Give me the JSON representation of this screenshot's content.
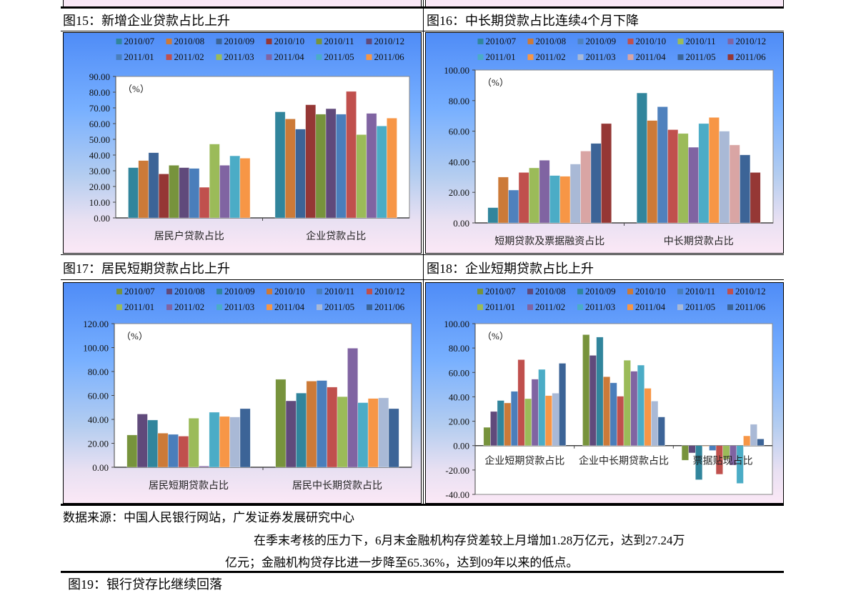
{
  "figures": [
    {
      "title": "图15：新增企业贷款占比上升"
    },
    {
      "title": "图16：中长期贷款占比连续4个月下降"
    },
    {
      "title": "图17：居民短期贷款占比上升"
    },
    {
      "title": "图18：企业短期贷款占比上升"
    }
  ],
  "source": "数据来源：中国人民银行网站，广发证券发展研究中心",
  "paragraph": {
    "line1": "在季末考核的压力下，6月末金融机构存贷差较上月增加1.28万亿元，达到27.24万",
    "line2": "亿元；金融机构贷存比进一步降至65.36%，达到09年以来的低点。"
  },
  "next_figure_title": "图19：银行贷存比继续回落",
  "chart_data": [
    {
      "type": "bar",
      "title": "图15：新增企业贷款占比上升",
      "unit_label": "（%）",
      "categories": [
        "居民户贷款占比",
        "企业贷款占比"
      ],
      "ylim": [
        0,
        90
      ],
      "ytick_step": 10,
      "yticks": [
        "0.00",
        "10.00",
        "20.00",
        "30.00",
        "40.00",
        "50.00",
        "60.00",
        "70.00",
        "80.00",
        "90.00"
      ],
      "legend_placement": "top",
      "series": [
        {
          "name": "2010/07",
          "color": "#31859c",
          "values": [
            32,
            67.5
          ]
        },
        {
          "name": "2010/08",
          "color": "#cc7a38",
          "values": [
            36.5,
            63
          ]
        },
        {
          "name": "2010/09",
          "color": "#3c6497",
          "values": [
            41.5,
            56.5
          ]
        },
        {
          "name": "2010/10",
          "color": "#953735",
          "values": [
            28,
            72
          ]
        },
        {
          "name": "2010/11",
          "color": "#77933c",
          "values": [
            33.5,
            66
          ]
        },
        {
          "name": "2010/12",
          "color": "#604a7b",
          "values": [
            32,
            69.5
          ]
        },
        {
          "name": "2011/01",
          "color": "#4a7ebb",
          "values": [
            31.5,
            66
          ]
        },
        {
          "name": "2011/02",
          "color": "#c0504d",
          "values": [
            19.5,
            80.5
          ]
        },
        {
          "name": "2011/03",
          "color": "#9bbb59",
          "values": [
            47,
            53
          ]
        },
        {
          "name": "2011/04",
          "color": "#8064a2",
          "values": [
            33.5,
            66.5
          ]
        },
        {
          "name": "2011/05",
          "color": "#4bacc6",
          "values": [
            39.5,
            58.5
          ]
        },
        {
          "name": "2011/06",
          "color": "#f79646",
          "values": [
            38,
            63.5
          ]
        }
      ]
    },
    {
      "type": "bar",
      "title": "图16：中长期贷款占比连续4个月下降",
      "unit_label": "（%）",
      "categories": [
        "短期贷款及票据融资占比",
        "中长期贷款占比"
      ],
      "ylim": [
        0,
        100
      ],
      "ytick_step": 20,
      "yticks": [
        "0.00",
        "20.00",
        "40.00",
        "60.00",
        "80.00",
        "100.00"
      ],
      "legend_placement": "top",
      "series": [
        {
          "name": "2010/07",
          "color": "#31859c",
          "values": [
            10,
            85
          ]
        },
        {
          "name": "2010/08",
          "color": "#cc7a38",
          "values": [
            30,
            67
          ]
        },
        {
          "name": "2010/09",
          "color": "#4f81bd",
          "values": [
            21.5,
            76
          ]
        },
        {
          "name": "2010/10",
          "color": "#c0504d",
          "values": [
            33,
            61
          ]
        },
        {
          "name": "2010/11",
          "color": "#9bbb59",
          "values": [
            36,
            58.5
          ]
        },
        {
          "name": "2010/12",
          "color": "#8064a2",
          "values": [
            41,
            49.5
          ]
        },
        {
          "name": "2011/01",
          "color": "#4bacc6",
          "values": [
            31,
            65
          ]
        },
        {
          "name": "2011/02",
          "color": "#f79646",
          "values": [
            30.5,
            69
          ]
        },
        {
          "name": "2011/03",
          "color": "#a9b9d6",
          "values": [
            38.5,
            60
          ]
        },
        {
          "name": "2011/04",
          "color": "#d9a5a4",
          "values": [
            47,
            51
          ]
        },
        {
          "name": "2011/05",
          "color": "#3c6497",
          "values": [
            52,
            44.5
          ]
        },
        {
          "name": "2011/06",
          "color": "#953735",
          "values": [
            65,
            33
          ]
        }
      ]
    },
    {
      "type": "bar",
      "title": "图17：居民短期贷款占比上升",
      "unit_label": "（%）",
      "categories": [
        "居民短期贷款占比",
        "居民中长期贷款占比"
      ],
      "ylim": [
        0,
        120
      ],
      "ytick_step": 20,
      "yticks": [
        "0.00",
        "20.00",
        "40.00",
        "60.00",
        "80.00",
        "100.00",
        "120.00"
      ],
      "legend_placement": "top",
      "series": [
        {
          "name": "2010/07",
          "color": "#77933c",
          "values": [
            27,
            73.5
          ]
        },
        {
          "name": "2010/08",
          "color": "#604a7b",
          "values": [
            44.5,
            55.5
          ]
        },
        {
          "name": "2010/09",
          "color": "#31859c",
          "values": [
            39.5,
            62
          ]
        },
        {
          "name": "2010/10",
          "color": "#cc7a38",
          "values": [
            28.5,
            72
          ]
        },
        {
          "name": "2010/11",
          "color": "#4a7ebb",
          "values": [
            27.5,
            72.5
          ]
        },
        {
          "name": "2010/12",
          "color": "#c0504d",
          "values": [
            26,
            67
          ]
        },
        {
          "name": "2011/01",
          "color": "#9bbb59",
          "values": [
            41,
            59
          ]
        },
        {
          "name": "2011/02",
          "color": "#8064a2",
          "values": [
            1,
            99.5
          ]
        },
        {
          "name": "2011/03",
          "color": "#4bacc6",
          "values": [
            46,
            54
          ]
        },
        {
          "name": "2011/04",
          "color": "#f79646",
          "values": [
            42.5,
            57.5
          ]
        },
        {
          "name": "2011/05",
          "color": "#a9b9d6",
          "values": [
            42,
            58
          ]
        },
        {
          "name": "2011/06",
          "color": "#3c6497",
          "values": [
            49,
            49
          ]
        }
      ]
    },
    {
      "type": "bar",
      "title": "图18：企业短期贷款占比上升",
      "unit_label": "（%）",
      "categories": [
        "企业短期贷款占比",
        "企业中长期贷款占比",
        "票据贴现占比"
      ],
      "ylim": [
        -40,
        100
      ],
      "ytick_step": 20,
      "yticks": [
        "-40.00",
        "-20.00",
        "0.00",
        "20.00",
        "40.00",
        "60.00",
        "80.00",
        "100.00"
      ],
      "legend_placement": "top",
      "series": [
        {
          "name": "2010/07",
          "color": "#77933c",
          "values": [
            15,
            91,
            -12
          ]
        },
        {
          "name": "2010/08",
          "color": "#604a7b",
          "values": [
            28,
            74,
            -6
          ]
        },
        {
          "name": "2010/09",
          "color": "#31859c",
          "values": [
            37,
            89,
            -28
          ]
        },
        {
          "name": "2010/10",
          "color": "#cc7a38",
          "values": [
            35,
            56.5,
            -0.5
          ]
        },
        {
          "name": "2010/11",
          "color": "#4a7ebb",
          "values": [
            44.5,
            51.5,
            -4
          ]
        },
        {
          "name": "2010/12",
          "color": "#c0504d",
          "values": [
            70.5,
            40.5,
            -23.5
          ]
        },
        {
          "name": "2011/01",
          "color": "#9bbb59",
          "values": [
            38.5,
            70,
            -11
          ]
        },
        {
          "name": "2011/02",
          "color": "#8064a2",
          "values": [
            54.5,
            61,
            -16
          ]
        },
        {
          "name": "2011/03",
          "color": "#4bacc6",
          "values": [
            62.5,
            66,
            -31
          ]
        },
        {
          "name": "2011/04",
          "color": "#f79646",
          "values": [
            41,
            47,
            8
          ]
        },
        {
          "name": "2011/05",
          "color": "#a9b9d6",
          "values": [
            43,
            36.5,
            17.5
          ]
        },
        {
          "name": "2011/06",
          "color": "#3c6497",
          "values": [
            67.5,
            23.5,
            5.5
          ]
        }
      ]
    }
  ]
}
